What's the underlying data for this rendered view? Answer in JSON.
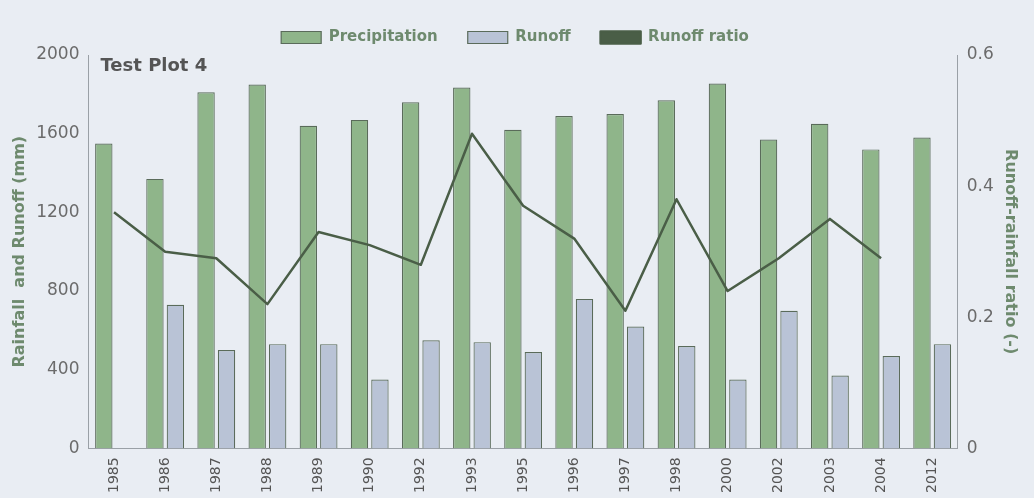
{
  "chart_data": {
    "type": "bar",
    "title": "Test Plot 4",
    "ylabel": "Rainfall  and Runoff (mm)",
    "y2label": "Runoff-rainfall ratio (-)",
    "categories": [
      "1985",
      "1986",
      "1987",
      "1988",
      "1989",
      "1990",
      "1992",
      "1993",
      "1995",
      "1996",
      "1997",
      "1998",
      "2000",
      "2002",
      "2003",
      "2004",
      "2012"
    ],
    "series": [
      {
        "name": "Precipitation",
        "color": "#8fb58a",
        "values": [
          1550,
          1370,
          1810,
          1850,
          1640,
          1670,
          1760,
          1835,
          1620,
          1690,
          1700,
          1770,
          1855,
          1570,
          1650,
          1520,
          1580
        ]
      },
      {
        "name": "Runoff",
        "color": "#b9c3d6",
        "values": [
          null,
          730,
          500,
          530,
          530,
          350,
          550,
          540,
          490,
          760,
          620,
          520,
          350,
          700,
          370,
          470,
          530
        ]
      },
      {
        "name": "Runoff ratio",
        "type": "line",
        "axis": "y2",
        "color": "#4a5e47",
        "values": [
          0.36,
          0.3,
          0.29,
          0.22,
          0.33,
          0.31,
          0.28,
          0.48,
          0.37,
          0.32,
          0.21,
          0.38,
          0.24,
          0.29,
          0.35,
          0.29,
          null
        ]
      }
    ],
    "ylim": [
      0,
      2000
    ],
    "yticks": [
      0,
      400,
      800,
      1200,
      1600,
      2000
    ],
    "y2lim": [
      0,
      0.6
    ],
    "y2ticks": [
      0,
      0.2,
      0.4,
      0.6
    ],
    "grid": false,
    "legend": "top",
    "marker": "none",
    "line_style": "solid"
  }
}
